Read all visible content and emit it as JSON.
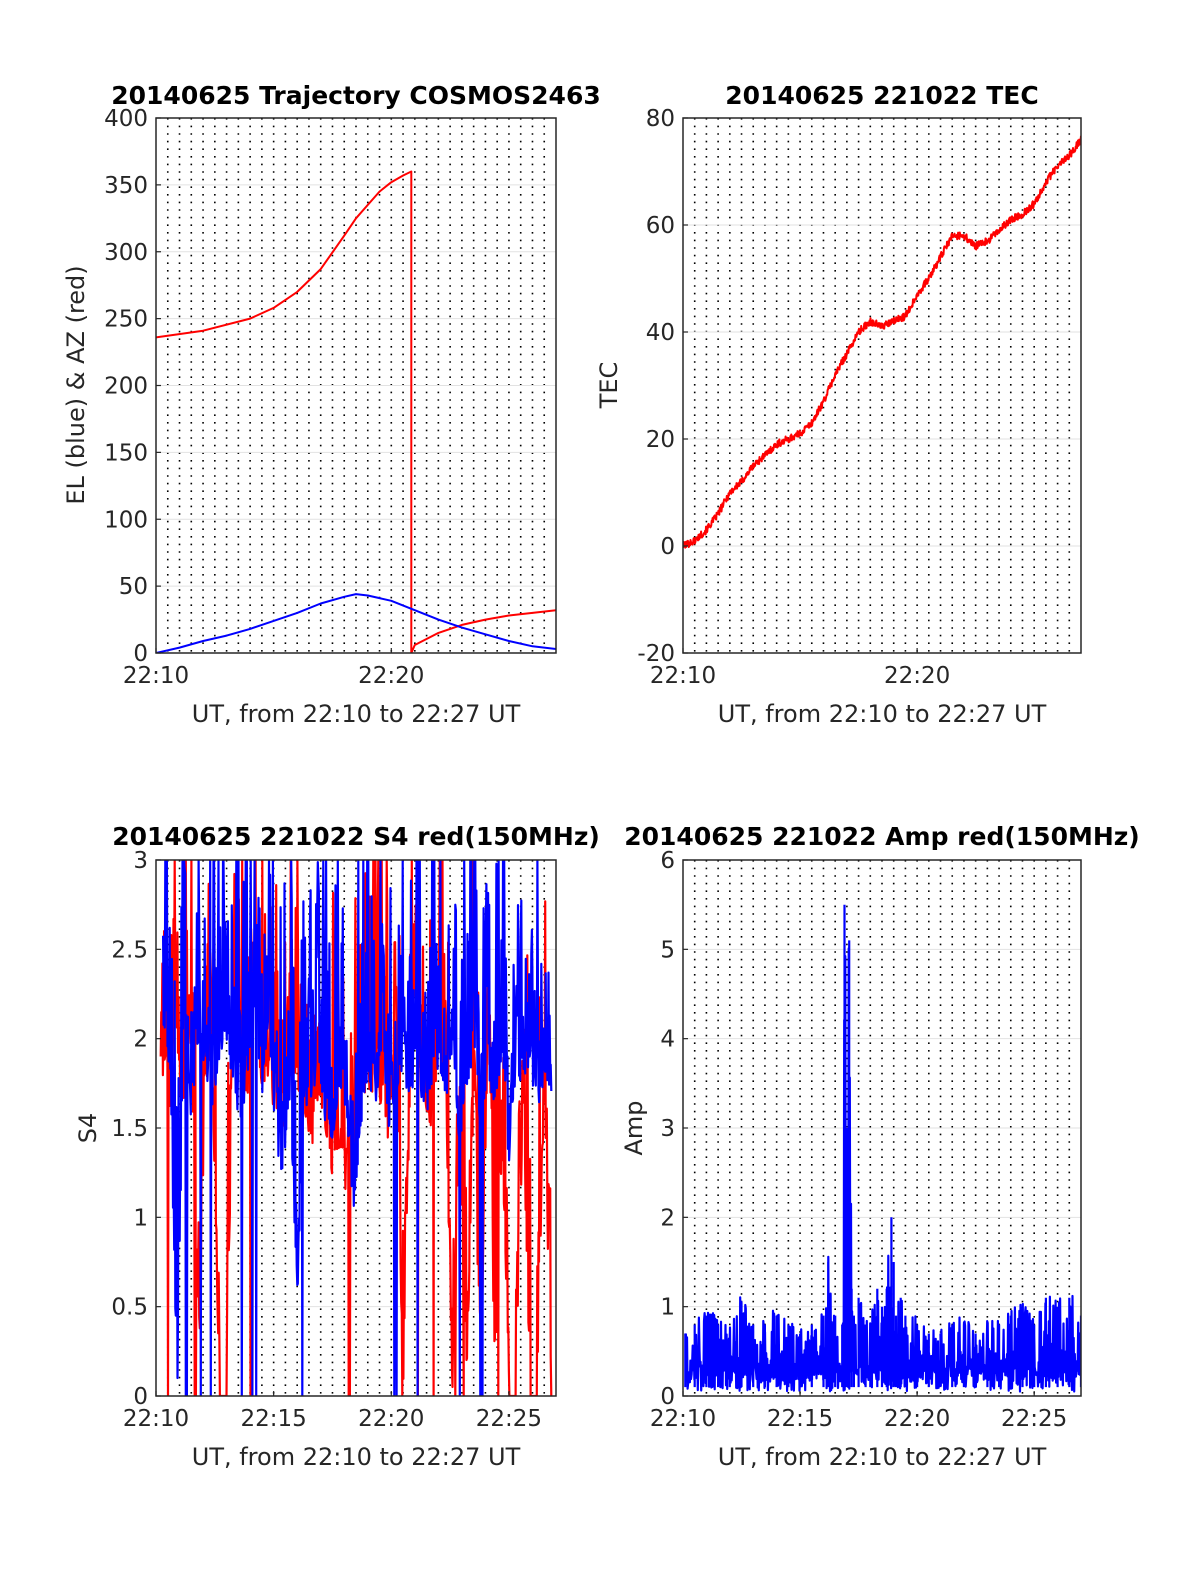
{
  "figure": {
    "panels": [
      {
        "id": "trajectory",
        "title": "20140625 Trajectory COSMOS2463",
        "xlabel": "UT, from 22:10 to 22:27 UT",
        "ylabel": "EL (blue) & AZ (red)"
      },
      {
        "id": "tec",
        "title": "20140625 221022 TEC",
        "xlabel": "UT, from 22:10 to 22:27 UT",
        "ylabel": "TEC"
      },
      {
        "id": "s4",
        "title": "20140625 221022 S4 red(150MHz)",
        "xlabel": "UT, from 22:10 to 22:27 UT",
        "ylabel": "S4"
      },
      {
        "id": "amp",
        "title": "20140625 221022 Amp red(150MHz)",
        "xlabel": "UT, from 22:10 to 22:27 UT",
        "ylabel": "Amp"
      }
    ]
  },
  "chart_data": [
    {
      "type": "line",
      "title": "20140625 Trajectory COSMOS2463",
      "xlabel": "UT, from 22:10 to 22:27 UT",
      "ylabel": "EL (blue) & AZ (red)",
      "x_unit": "minutes after 22:10 UT",
      "xlim": [
        0,
        17
      ],
      "ylim": [
        0,
        400
      ],
      "xticks": [
        0,
        10
      ],
      "xtick_labels": [
        "22:10",
        "22:20"
      ],
      "yticks": [
        0,
        50,
        100,
        150,
        200,
        250,
        300,
        350,
        400
      ],
      "grid": "dotted vertical every 0.5 min, solid horizontal",
      "series": [
        {
          "color": "#ff0000",
          "x": [
            0,
            2,
            4,
            5,
            6,
            7,
            8,
            8.5,
            9,
            9.5,
            10,
            10.5,
            10.85,
            10.85,
            11,
            12,
            13,
            14,
            15,
            16,
            17
          ],
          "y": [
            236,
            241,
            250,
            258,
            270,
            287,
            312,
            325,
            335,
            345,
            352,
            357,
            360,
            0,
            6,
            15,
            21,
            25,
            28,
            30,
            32
          ]
        },
        {
          "color": "#0000ff",
          "x": [
            0,
            1,
            2,
            3,
            4,
            5,
            6,
            7,
            8,
            8.5,
            9,
            10,
            11,
            12,
            13,
            14,
            15,
            16,
            17
          ],
          "y": [
            0,
            4,
            9,
            13,
            18,
            24,
            30,
            37,
            42,
            44,
            43,
            39,
            32,
            25,
            19,
            14,
            9,
            5,
            3
          ]
        }
      ]
    },
    {
      "type": "line",
      "title": "20140625 221022 TEC",
      "xlabel": "UT, from 22:10 to 22:27 UT",
      "ylabel": "TEC",
      "x_unit": "minutes after 22:10 UT",
      "xlim": [
        0,
        17
      ],
      "ylim": [
        -20,
        80
      ],
      "xticks": [
        0,
        10
      ],
      "xtick_labels": [
        "22:10",
        "22:20"
      ],
      "yticks": [
        -20,
        0,
        20,
        40,
        60,
        80
      ],
      "grid": "dotted vertical every 0.5 min, solid horizontal",
      "series": [
        {
          "color": "#ff0000",
          "x": [
            0,
            0.5,
            1,
            1.5,
            2,
            2.5,
            3,
            3.5,
            4,
            4.5,
            5,
            5.5,
            6,
            6.5,
            7,
            7.5,
            8,
            8.5,
            9,
            9.5,
            10,
            10.5,
            11,
            11.5,
            12,
            12.5,
            13,
            13.5,
            14,
            14.5,
            15,
            15.5,
            16,
            16.5,
            17
          ],
          "y": [
            0,
            1,
            3,
            6,
            10,
            12,
            15,
            17,
            19,
            20,
            21,
            23,
            27,
            32,
            36,
            40,
            42,
            41,
            42,
            43,
            47,
            50,
            54,
            58,
            58,
            56,
            57,
            59,
            61,
            62,
            64,
            68,
            71,
            73,
            76
          ]
        }
      ]
    },
    {
      "type": "line",
      "title": "20140625 221022 S4 red(150MHz)",
      "xlabel": "UT, from 22:10 to 22:27 UT",
      "ylabel": "S4",
      "x_unit": "minutes after 22:10 UT",
      "xlim": [
        0,
        17
      ],
      "ylim": [
        0,
        3
      ],
      "xticks": [
        0,
        5,
        10,
        15
      ],
      "xtick_labels": [
        "22:10",
        "22:15",
        "22:20",
        "22:25"
      ],
      "yticks": [
        0,
        0.5,
        1,
        1.5,
        2,
        2.5,
        3
      ],
      "grid": "dotted vertical every 0.5 min, solid horizontal",
      "series": [
        {
          "color": "#ff0000",
          "x": [
            0.2,
            0.4,
            0.6,
            0.8,
            1.0,
            1.2,
            1.5,
            1.8,
            2.1,
            2.4,
            2.7,
            3.0,
            3.3,
            3.6,
            3.9,
            4.2,
            4.5,
            4.8,
            5.1,
            5.4,
            5.7,
            6.0,
            6.3,
            6.6,
            6.9,
            7.2,
            7.5,
            7.8,
            8.1,
            8.4,
            8.7,
            9.0,
            9.3,
            9.6,
            9.9,
            10.2,
            10.5,
            10.8,
            11.1,
            11.4,
            11.7,
            12.0,
            12.3,
            12.6,
            12.9,
            13.2,
            13.5,
            13.8,
            14.1,
            14.4,
            14.7,
            15.0,
            15.3,
            15.6,
            15.9,
            16.2,
            16.5,
            16.8
          ],
          "y": [
            1.4,
            1.9,
            1.5,
            2.3,
            1.7,
            1.6,
            2.0,
            0,
            1.8,
            1.7,
            0,
            0,
            2.1,
            1.9,
            1.6,
            2.2,
            1.7,
            1.8,
            1.5,
            1.4,
            2.0,
            1.7,
            1.6,
            1.3,
            1.7,
            1.5,
            1.2,
            1.4,
            1.1,
            1.3,
            1.6,
            1.5,
            1.8,
            1.6,
            1.4,
            1.9,
            0,
            1.7,
            2.0,
            1.6,
            1.5,
            1.8,
            1.7,
            0,
            1.5,
            0,
            1.7,
            0,
            2.0,
            0,
            1.4,
            0,
            0,
            1.6,
            0,
            0,
            1.7,
            0
          ]
        },
        {
          "color": "#0000ff",
          "x": [
            0.3,
            0.6,
            0.9,
            1.2,
            1.5,
            1.8,
            2.1,
            2.4,
            2.7,
            3.0,
            3.3,
            3.6,
            3.9,
            4.2,
            4.5,
            4.8,
            5.1,
            5.4,
            5.7,
            6.0,
            6.3,
            6.6,
            6.9,
            7.2,
            7.5,
            7.8,
            8.1,
            8.4,
            8.7,
            9.0,
            9.3,
            9.6,
            9.9,
            10.2,
            10.5,
            10.8,
            11.1,
            11.4,
            11.7,
            12.0,
            12.3,
            12.6,
            12.9,
            13.2,
            13.5,
            13.8,
            14.1,
            14.4,
            14.7,
            15.0,
            15.3,
            15.6,
            15.9,
            16.2,
            16.5,
            16.8
          ],
          "y": [
            2.1,
            1.8,
            0,
            2.2,
            1.5,
            2.0,
            1.8,
            1.6,
            1.9,
            2.0,
            1.7,
            1.5,
            1.8,
            2.0,
            1.6,
            1.9,
            1.4,
            1.2,
            1.7,
            0.5,
            1.5,
            1.6,
            1.9,
            1.5,
            1.4,
            1.7,
            1.6,
            1.0,
            1.5,
            1.8,
            1.6,
            1.9,
            1.5,
            1.7,
            1.8,
            1.6,
            1.9,
            1.5,
            1.7,
            1.8,
            1.6,
            1.9,
            1.4,
            1.7,
            1.9,
            1.5,
            1.8,
            1.6,
            1.9,
            1.3,
            1.8,
            1.6,
            1.9,
            1.5,
            1.8,
            1.7
          ]
        }
      ]
    },
    {
      "type": "line",
      "title": "20140625 221022 Amp red(150MHz)",
      "xlabel": "UT, from 22:10 to 22:27 UT",
      "ylabel": "Amp",
      "x_unit": "minutes after 22:10 UT",
      "xlim": [
        0,
        17
      ],
      "ylim": [
        0,
        6
      ],
      "xticks": [
        0,
        5,
        10,
        15
      ],
      "xtick_labels": [
        "22:10",
        "22:15",
        "22:20",
        "22:25"
      ],
      "yticks": [
        0,
        1,
        2,
        3,
        4,
        5,
        6
      ],
      "grid": "dotted vertical every 0.5 min, solid horizontal",
      "series": [
        {
          "color": "#0000ff",
          "x": [
            0.1,
            0.5,
            1.0,
            1.5,
            2.0,
            2.5,
            3.0,
            3.5,
            4.0,
            4.5,
            5.0,
            5.5,
            6.0,
            6.2,
            6.5,
            6.8,
            6.9,
            7.0,
            7.1,
            7.2,
            7.3,
            7.5,
            7.8,
            8.0,
            8.3,
            8.5,
            8.7,
            8.9,
            9.0,
            9.1,
            9.3,
            9.5,
            10.0,
            10.5,
            11.0,
            11.5,
            12.0,
            12.5,
            13.0,
            13.5,
            14.0,
            14.5,
            15.0,
            15.5,
            16.0,
            16.5,
            17.0
          ],
          "y": [
            0.7,
            0.8,
            0.9,
            0.8,
            0.7,
            1.05,
            0.8,
            0.8,
            0.9,
            0.8,
            0.7,
            0.8,
            0.9,
            1.5,
            0.9,
            0.8,
            5.5,
            3.0,
            5.1,
            1.2,
            0.9,
            1.1,
            0.8,
            0.8,
            1.2,
            1.0,
            1.2,
            2.0,
            1.5,
            0.9,
            1.1,
            0.9,
            0.8,
            0.7,
            0.7,
            0.8,
            0.8,
            0.7,
            0.8,
            0.8,
            0.9,
            1.0,
            0.8,
            1.1,
            1.0,
            1.1,
            0.9
          ]
        }
      ]
    }
  ]
}
